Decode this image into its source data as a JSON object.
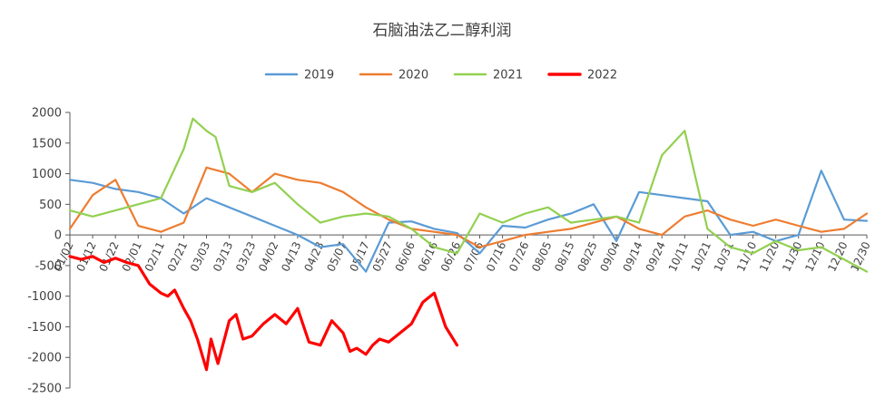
{
  "chart_data": {
    "type": "line",
    "title": "石脑油法乙二醇利润",
    "xlabel": "",
    "ylabel": "",
    "ylim": [
      -2500,
      2000
    ],
    "y_ticks": [
      2000,
      1500,
      1000,
      500,
      0,
      -500,
      -1000,
      -1500,
      -2000,
      -2500
    ],
    "x_tick_labels": [
      "01/02",
      "01/12",
      "01/22",
      "02/01",
      "02/11",
      "02/21",
      "03/03",
      "03/13",
      "03/23",
      "04/02",
      "04/13",
      "04/23",
      "05/07",
      "05/17",
      "05/27",
      "06/06",
      "06/16",
      "06/26",
      "07/06",
      "07/16",
      "07/26",
      "08/05",
      "08/15",
      "08/25",
      "09/04",
      "09/14",
      "09/24",
      "10/11",
      "10/21",
      "10/31",
      "11/10",
      "11/20",
      "11/30",
      "12/10",
      "12/20",
      "12/30"
    ],
    "grid": false,
    "legend_position": "top",
    "series": [
      {
        "name": "2019",
        "color": "#5b9bd5",
        "x": [
          0,
          1,
          2,
          3,
          4,
          5,
          6,
          7,
          8,
          9,
          10,
          11,
          12,
          13,
          14,
          15,
          16,
          17,
          18,
          19,
          20,
          21,
          22,
          23,
          24,
          25,
          26,
          27,
          28,
          29,
          30,
          31,
          32,
          33,
          34,
          35
        ],
        "values": [
          900,
          850,
          750,
          700,
          600,
          350,
          600,
          450,
          300,
          150,
          0,
          -200,
          -150,
          -600,
          200,
          220,
          100,
          30,
          -300,
          150,
          120,
          250,
          350,
          500,
          -100,
          700,
          650,
          600,
          550,
          0,
          50,
          -100,
          0,
          1050,
          250,
          230
        ]
      },
      {
        "name": "2020",
        "color": "#ed7d31",
        "x": [
          0,
          1,
          2,
          3,
          4,
          5,
          6,
          7,
          8,
          9,
          10,
          11,
          12,
          13,
          14,
          15,
          16,
          17,
          18,
          19,
          20,
          21,
          22,
          23,
          24,
          25,
          26,
          27,
          28,
          29,
          30,
          31,
          32,
          33,
          34,
          35
        ],
        "values": [
          100,
          650,
          900,
          150,
          50,
          200,
          1100,
          1000,
          700,
          1000,
          900,
          850,
          700,
          450,
          250,
          100,
          50,
          0,
          -200,
          -100,
          0,
          50,
          100,
          200,
          300,
          100,
          0,
          300,
          400,
          250,
          150,
          250,
          150,
          50,
          100,
          350
        ]
      },
      {
        "name": "2021",
        "color": "#92d050",
        "x": [
          0,
          1,
          2,
          3,
          4,
          5,
          5.4,
          6,
          6.4,
          7,
          8,
          9,
          10,
          11,
          12,
          13,
          14,
          15,
          16,
          17,
          18,
          19,
          20,
          21,
          22,
          23,
          24,
          25,
          26,
          27,
          28,
          29,
          30,
          31,
          32,
          33,
          34,
          35
        ],
        "values": [
          400,
          300,
          400,
          500,
          600,
          1400,
          1900,
          1700,
          1600,
          800,
          700,
          850,
          500,
          200,
          300,
          350,
          300,
          100,
          -200,
          -300,
          350,
          200,
          350,
          450,
          200,
          250,
          300,
          200,
          1300,
          1700,
          100,
          -200,
          -300,
          -100,
          -250,
          -200,
          -400,
          -600
        ]
      },
      {
        "name": "2022",
        "color": "#ff0000",
        "x": [
          0,
          0.5,
          1,
          1.5,
          2,
          2.5,
          3,
          3.5,
          4,
          4.3,
          4.6,
          5,
          5.3,
          5.6,
          6,
          6.2,
          6.5,
          7,
          7.3,
          7.6,
          8,
          8.5,
          9,
          9.5,
          10,
          10.5,
          11,
          11.5,
          12,
          12.3,
          12.6,
          13,
          13.3,
          13.6,
          14,
          14.5,
          15,
          15.5,
          16,
          16.5,
          17
        ],
        "values": [
          -350,
          -400,
          -350,
          -450,
          -380,
          -450,
          -500,
          -800,
          -950,
          -1000,
          -900,
          -1200,
          -1400,
          -1700,
          -2200,
          -1700,
          -2100,
          -1400,
          -1300,
          -1700,
          -1650,
          -1450,
          -1300,
          -1450,
          -1200,
          -1750,
          -1800,
          -1400,
          -1600,
          -1900,
          -1850,
          -1950,
          -1800,
          -1700,
          -1750,
          -1600,
          -1450,
          -1100,
          -950,
          -1500,
          -1800
        ]
      }
    ]
  }
}
